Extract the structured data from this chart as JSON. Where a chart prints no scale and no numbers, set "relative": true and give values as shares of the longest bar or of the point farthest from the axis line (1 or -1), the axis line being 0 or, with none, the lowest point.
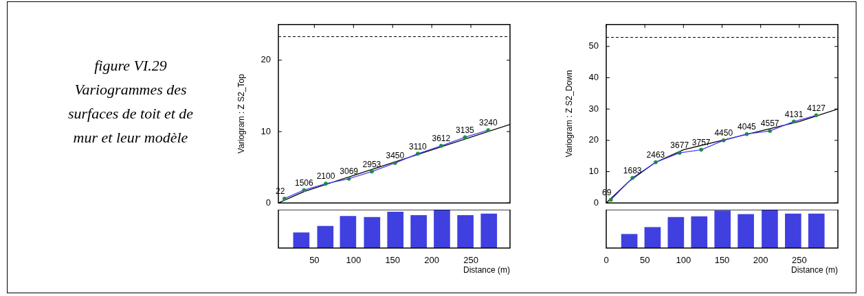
{
  "chart_data": [
    {
      "type": "other",
      "title": "figure VI.29",
      "subtitle": "Variogrammes des surfaces de toit et de mur et leur modèle"
    },
    {
      "type": "line",
      "ylabel": "Variogram : Z S2_Top",
      "xlim": [
        4,
        300
      ],
      "ylim": [
        0,
        25
      ],
      "xticks": [
        50,
        100,
        150,
        200,
        250
      ],
      "yticks": [
        0,
        10,
        20
      ],
      "tick_labels": "y",
      "grid": false,
      "ref_lines": [
        {
          "axis": "y",
          "value": 23.3,
          "color": "#000000",
          "line_style": "dashed"
        }
      ],
      "series": [
        {
          "type": "line",
          "color": "#4040ff",
          "x": [
            11.7,
            36.8,
            64.6,
            94.2,
            123.4,
            153.2,
            182.2,
            212,
            242.4,
            272.2
          ],
          "values": [
            0.6,
            1.8,
            2.7,
            3.4,
            4.4,
            5.6,
            6.9,
            8.0,
            9.2,
            10.2
          ]
        },
        {
          "type": "scatter",
          "color": "#20a020",
          "marker": "circle",
          "x": [
            11.7,
            36.8,
            64.6,
            94.2,
            123.4,
            153.2,
            182.2,
            212,
            242.4,
            272.2
          ],
          "values": [
            0.6,
            1.8,
            2.7,
            3.4,
            4.4,
            5.6,
            6.9,
            8.0,
            9.2,
            10.2
          ]
        },
        {
          "type": "line",
          "color": "#000000",
          "x": [
            4,
            36.8,
            300
          ],
          "values": [
            0,
            1.6,
            11.0
          ]
        }
      ],
      "annotations": [
        {
          "text": "22",
          "x": 11.7,
          "y": 0.6
        },
        {
          "text": "1506",
          "x": 36.8,
          "y": 1.8
        },
        {
          "text": "2100",
          "x": 64.6,
          "y": 2.7
        },
        {
          "text": "3069",
          "x": 94.2,
          "y": 3.4
        },
        {
          "text": "2953",
          "x": 123.4,
          "y": 4.4
        },
        {
          "text": "3450",
          "x": 153.2,
          "y": 5.6
        },
        {
          "text": "3110",
          "x": 182.2,
          "y": 6.9
        },
        {
          "text": "3612",
          "x": 212,
          "y": 8.0
        },
        {
          "text": "3135",
          "x": 242.4,
          "y": 9.2
        },
        {
          "text": "3240",
          "x": 272.2,
          "y": 10.2
        }
      ]
    },
    {
      "type": "bar",
      "relative": true,
      "color": "#4040e0",
      "x": [
        33.3,
        64,
        93,
        123.7,
        153.5,
        183.3,
        213,
        243,
        273
      ],
      "values": [
        0.4,
        0.57,
        0.83,
        0.8,
        0.94,
        0.85,
        1,
        0.85,
        0.89
      ],
      "xlim": [
        4,
        300
      ],
      "xticks": [
        50,
        100,
        150,
        200,
        250
      ],
      "xlabel": "Distance (m)",
      "tick_labels": "x",
      "grid": false
    },
    {
      "type": "line",
      "ylabel": "Variogram : Z S2_Down",
      "xlim": [
        0,
        300
      ],
      "ylim": [
        0,
        57
      ],
      "xticks": [
        0,
        50,
        100,
        150,
        200,
        250
      ],
      "yticks": [
        0,
        10,
        20,
        30,
        40,
        50
      ],
      "tick_labels": "y",
      "grid": false,
      "ref_lines": [
        {
          "axis": "y",
          "value": 52.9,
          "color": "#000000",
          "line_style": "dashed"
        }
      ],
      "series": [
        {
          "type": "line",
          "color": "#4040ff",
          "x": [
            6,
            34,
            64,
            95,
            123,
            152,
            182,
            212,
            243,
            272
          ],
          "values": [
            1,
            8,
            13,
            16,
            17,
            20,
            22,
            23,
            26,
            28
          ]
        },
        {
          "type": "scatter",
          "color": "#20a020",
          "marker": "circle",
          "x": [
            6,
            34,
            64,
            95,
            123,
            152,
            182,
            212,
            243,
            272
          ],
          "values": [
            1,
            8,
            13,
            16,
            17,
            20,
            22,
            23,
            26,
            28
          ]
        },
        {
          "type": "line",
          "color": "#000000",
          "x": [
            0,
            30,
            64,
            100,
            150,
            200,
            250,
            300
          ],
          "values": [
            0,
            7,
            13,
            17,
            20,
            23,
            26,
            30
          ]
        }
      ],
      "annotations": [
        {
          "text": "69",
          "x": 6,
          "y": 1
        },
        {
          "text": "1683",
          "x": 34,
          "y": 8
        },
        {
          "text": "2463",
          "x": 64,
          "y": 13
        },
        {
          "text": "3677",
          "x": 95,
          "y": 16
        },
        {
          "text": "3757",
          "x": 123,
          "y": 17
        },
        {
          "text": "4450",
          "x": 152,
          "y": 20
        },
        {
          "text": "4045",
          "x": 182,
          "y": 22
        },
        {
          "text": "4557",
          "x": 212,
          "y": 23
        },
        {
          "text": "4131",
          "x": 243,
          "y": 26
        },
        {
          "text": "4127",
          "x": 272,
          "y": 28
        }
      ]
    },
    {
      "type": "bar",
      "relative": true,
      "color": "#4040e0",
      "x": [
        29.9,
        60,
        90.2,
        120.4,
        150.6,
        180.8,
        211.8,
        242,
        272.2
      ],
      "values": [
        0.36,
        0.54,
        0.8,
        0.82,
        0.97,
        0.88,
        1,
        0.89,
        0.89
      ],
      "xlim": [
        0,
        300
      ],
      "xticks": [
        0,
        50,
        100,
        150,
        200,
        250
      ],
      "xlabel": "Distance (m)",
      "tick_labels": "x",
      "grid": false
    }
  ]
}
